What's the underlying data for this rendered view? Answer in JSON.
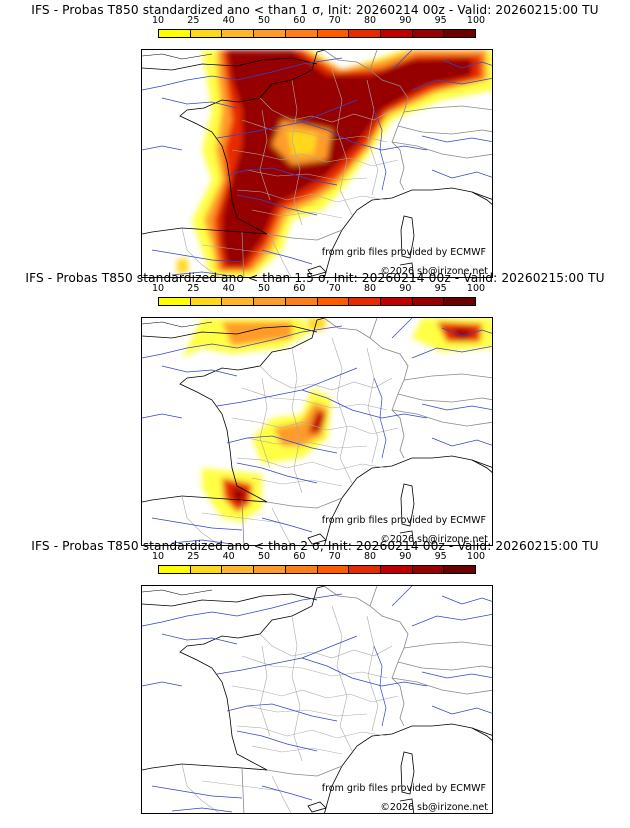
{
  "scale": {
    "ticks": [
      "10",
      "25",
      "40",
      "50",
      "60",
      "70",
      "80",
      "90",
      "95",
      "100"
    ],
    "colors": [
      "#ffff00",
      "#ffd81c",
      "#ffb62c",
      "#ff9b2c",
      "#ff7e1c",
      "#ff5c00",
      "#e82a00",
      "#c00000",
      "#960000",
      "#6a0000"
    ]
  },
  "panels": [
    {
      "title": "IFS - Probas T850  standardized ano < than 1 σ, Init: 20260214 00z - Valid: 20260215:00 TU",
      "credit": "from grib files provided by ECMWF",
      "copyright": "©2026 sb@irizone.net"
    },
    {
      "title": "IFS - Probas T850  standardized ano < than 1.5 σ, Init: 20260214 00z - Valid: 20260215:00 TU",
      "credit": "from grib files provided by ECMWF",
      "copyright": "©2026 sb@irizone.net"
    },
    {
      "title": "IFS - Probas T850  standardized ano < than 2 σ, Init: 20260214 00z - Valid: 20260215:00 TU",
      "credit": "from grib files provided by ECMWF",
      "copyright": "©2026 sb@irizone.net"
    }
  ]
}
